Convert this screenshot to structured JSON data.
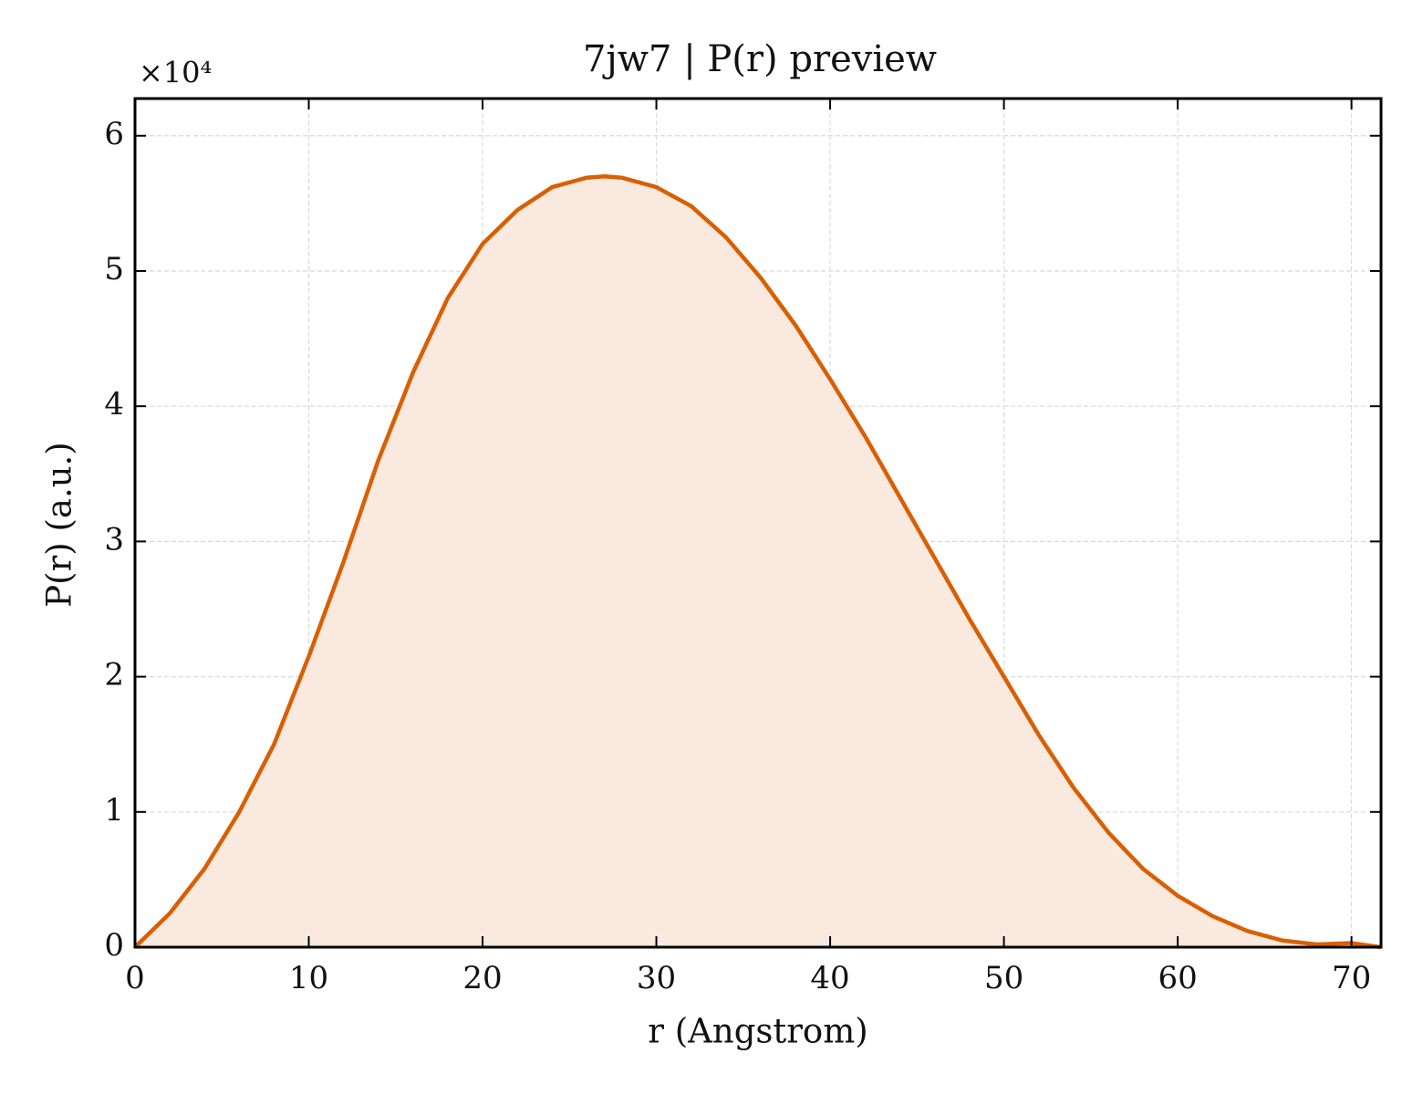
{
  "chart_data": {
    "type": "line",
    "title": "7jw7 | P(r) preview",
    "x_label": "r (Angstrom)",
    "y_label": "P(r) (a.u.)",
    "y_offset_label": "×10⁴",
    "x": [
      0,
      2,
      4,
      6,
      8,
      10,
      12,
      14,
      16,
      18,
      20,
      22,
      24,
      26,
      27,
      28,
      30,
      32,
      34,
      36,
      38,
      40,
      42,
      44,
      46,
      48,
      50,
      52,
      54,
      56,
      58,
      60,
      62,
      64,
      66,
      68,
      70,
      71.7
    ],
    "series": [
      {
        "name": "P(r)",
        "color": "#d95f02",
        "fill": "#fae9de",
        "values": [
          0,
          2500,
          5800,
          10000,
          15000,
          21500,
          28500,
          36000,
          42500,
          48000,
          52000,
          54500,
          56200,
          56900,
          57000,
          56900,
          56200,
          54800,
          52500,
          49500,
          46000,
          42000,
          37800,
          33300,
          28800,
          24300,
          20000,
          15700,
          11800,
          8500,
          5800,
          3800,
          2300,
          1200,
          500,
          200,
          300,
          0
        ]
      }
    ],
    "xlim": [
      0,
      71.7
    ],
    "xticks": [
      0,
      10,
      20,
      30,
      40,
      50,
      60,
      70
    ],
    "ylim": [
      0,
      62750
    ],
    "yticks": [
      {
        "value": 0,
        "label": "0"
      },
      {
        "value": 10000,
        "label": "1"
      },
      {
        "value": 20000,
        "label": "2"
      },
      {
        "value": 30000,
        "label": "3"
      },
      {
        "value": 40000,
        "label": "4"
      },
      {
        "value": 50000,
        "label": "5"
      },
      {
        "value": 60000,
        "label": "6"
      }
    ],
    "grid": true
  }
}
